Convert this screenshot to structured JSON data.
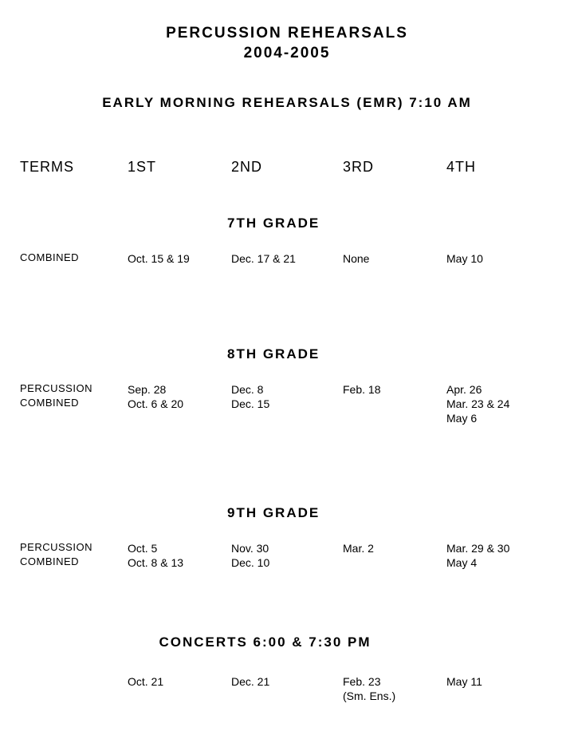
{
  "title_line1": "PERCUSSION  REHEARSALS",
  "title_line2": "2004-2005",
  "subtitle": "EARLY  MORNING  REHEARSALS  (EMR)  7:10  AM",
  "terms_label": "TERMS",
  "terms": [
    "1ST",
    "2ND",
    "3RD",
    "4TH"
  ],
  "grade7": {
    "heading": "7TH  GRADE",
    "rows": [
      {
        "label": "COMBINED",
        "cells": [
          "Oct. 15 & 19",
          "Dec. 17 & 21",
          "None",
          "May 10"
        ]
      }
    ]
  },
  "grade8": {
    "heading": "8TH  GRADE",
    "rows": [
      {
        "label": "PERCUSSION",
        "cells": [
          "Sep. 28",
          "Dec. 8",
          "Feb. 18",
          "Apr. 26"
        ]
      },
      {
        "label": "COMBINED",
        "cells": [
          "Oct. 6 & 20",
          "Dec. 15",
          "",
          "Mar. 23 & 24\nMay 6"
        ]
      }
    ]
  },
  "grade9": {
    "heading": "9TH  GRADE",
    "rows": [
      {
        "label": "PERCUSSION",
        "cells": [
          "Oct. 5",
          "Nov. 30",
          "Mar. 2",
          "Mar. 29 & 30"
        ]
      },
      {
        "label": "COMBINED",
        "cells": [
          "Oct.  8 & 13",
          "Dec. 10",
          "",
          "May 4"
        ]
      }
    ]
  },
  "concerts": {
    "heading": "CONCERTS  6:00  &  7:30  PM",
    "cells": [
      "Oct. 21",
      "Dec. 21",
      "Feb. 23\n(Sm. Ens.)",
      "May 11"
    ]
  }
}
